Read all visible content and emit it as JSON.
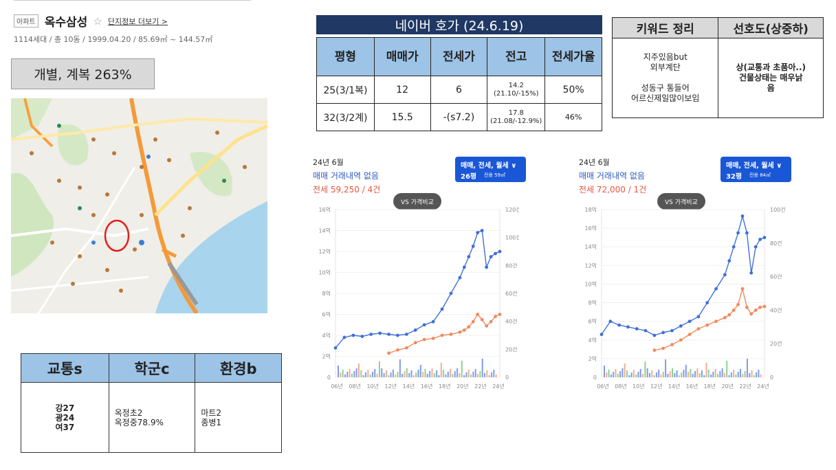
{
  "apartment": {
    "badge": "아파트",
    "name": "옥수삼성",
    "star": "☆",
    "more_link": "단지정보 더보기 >",
    "info": "1114세대 / 총 10동 / 1999.04.20 / 85.69㎡ ~ 144.57㎡"
  },
  "ratio_box": "개별, 계복 263%",
  "score_table": {
    "headers": [
      "교통s",
      "학군c",
      "환경b"
    ],
    "transport": [
      "강27",
      "광24",
      "여37"
    ],
    "school": [
      "옥정초2",
      "옥정중78.9%"
    ],
    "environment": [
      "마트2",
      "종병1"
    ]
  },
  "naver": {
    "title": "네이버 호가 (24.6.19)",
    "headers": [
      "평형",
      "매매가",
      "전세가",
      "전고",
      "전세가율"
    ],
    "rows": [
      {
        "type": "25(3/1복)",
        "sale": "12",
        "jeonse": "6",
        "high": "14.2",
        "high_note": "(21.10/-15%)",
        "rate": "50%"
      },
      {
        "type": "32(3/2계)",
        "sale": "15.5",
        "jeonse": "-(s7.2)",
        "high": "17.8",
        "high_note": "(21.08/-12.9%)",
        "rate": "46%"
      }
    ]
  },
  "keywords": {
    "headers": [
      "키워드 정리",
      "선호도(상중하)"
    ],
    "keyword_lines": [
      "지주있음but",
      "외부계단",
      "",
      "성동구 통들어",
      "어르신제일많이보임"
    ],
    "preference_lines": [
      "상(교통과 초품아..)",
      "건물상태는 매우낡",
      "음"
    ]
  },
  "panels": [
    {
      "month": "24년 6월",
      "sale_text": "매매 거래내역 없음",
      "jeonse_text": "전세 59,250 / 4건",
      "dropdown_line1": "매매, 전세, 월세 ∨",
      "dropdown_size": "26평",
      "dropdown_area": "전용 59㎡",
      "vs_label": "VS 가격비교"
    },
    {
      "month": "24년 6월",
      "sale_text": "매매 거래내역 없음",
      "jeonse_text": "전세 72,000 / 1건",
      "dropdown_line1": "매매, 전세, 월세 ∨",
      "dropdown_size": "32평",
      "dropdown_area": "전용 84㎡",
      "vs_label": "VS 가격비교"
    }
  ],
  "colors": {
    "sale_line": "#3f6fd8",
    "jeonse_line": "#f08a5d",
    "header_blue": "#9dc3e6",
    "navy": "#1f3864",
    "dropdown": "#1a57d6"
  },
  "chart_data": [
    {
      "type": "line",
      "x_tick_labels": [
        "06년",
        "08년",
        "10년",
        "12년",
        "14년",
        "16년",
        "18년",
        "20년",
        "22년",
        "24년"
      ],
      "y_left_ticks": [
        "0",
        "2억",
        "4억",
        "6억",
        "8억",
        "10억",
        "12억",
        "14억",
        "16억"
      ],
      "y_right_ticks": [
        "0",
        "20건",
        "40건",
        "60건",
        "80건",
        "100건",
        "120건"
      ],
      "ylim_left": [
        0,
        16
      ],
      "ylim_right": [
        0,
        120
      ],
      "x": [
        2006,
        2007,
        2008,
        2009,
        2010,
        2011,
        2012,
        2013,
        2014,
        2015,
        2016,
        2017,
        2018,
        2019,
        2020,
        2020.5,
        2021,
        2021.5,
        2022,
        2022.5,
        2023,
        2023.5,
        2024,
        2024.5
      ],
      "series": [
        {
          "values": [
            2.8,
            3.8,
            4.0,
            3.9,
            4.1,
            4.2,
            4.1,
            4.0,
            4.1,
            4.5,
            5.0,
            5.3,
            6.5,
            8.0,
            9.5,
            10.5,
            11.5,
            12.5,
            13.8,
            14.0,
            10.5,
            11.5,
            11.8,
            12.0
          ]
        },
        {
          "values": [
            null,
            null,
            null,
            null,
            null,
            null,
            2.3,
            2.6,
            2.8,
            3.3,
            3.6,
            3.7,
            4.0,
            4.1,
            4.3,
            4.5,
            4.8,
            5.3,
            6.0,
            5.5,
            4.9,
            5.3,
            5.8,
            6.0
          ]
        }
      ]
    },
    {
      "type": "line",
      "x_tick_labels": [
        "06년",
        "08년",
        "10년",
        "12년",
        "14년",
        "16년",
        "18년",
        "20년",
        "22년",
        "24년"
      ],
      "y_left_ticks": [
        "0",
        "2억",
        "4억",
        "6억",
        "8억",
        "10억",
        "12억",
        "14억",
        "16억",
        "18억"
      ],
      "y_right_ticks": [
        "0",
        "20건",
        "40건",
        "60건",
        "80건",
        "100건"
      ],
      "ylim_left": [
        0,
        18
      ],
      "ylim_right": [
        0,
        100
      ],
      "x": [
        2006,
        2007,
        2008,
        2009,
        2010,
        2011,
        2012,
        2013,
        2014,
        2015,
        2016,
        2017,
        2018,
        2019,
        2020,
        2020.5,
        2021,
        2021.5,
        2022,
        2022.5,
        2023,
        2023.5,
        2024,
        2024.5
      ],
      "series": [
        {
          "values": [
            4.6,
            6.0,
            5.6,
            5.4,
            5.2,
            5.0,
            4.5,
            4.8,
            5.0,
            5.5,
            6.0,
            6.5,
            8.0,
            9.5,
            11.0,
            12.5,
            14.0,
            15.5,
            17.3,
            15.5,
            11.2,
            14.0,
            14.8,
            15.0
          ]
        },
        {
          "values": [
            null,
            null,
            null,
            null,
            null,
            null,
            2.9,
            3.1,
            3.5,
            4.0,
            4.6,
            5.2,
            5.6,
            6.0,
            6.4,
            6.7,
            7.2,
            7.8,
            9.5,
            7.5,
            6.8,
            7.2,
            7.5,
            7.6
          ]
        }
      ]
    }
  ]
}
